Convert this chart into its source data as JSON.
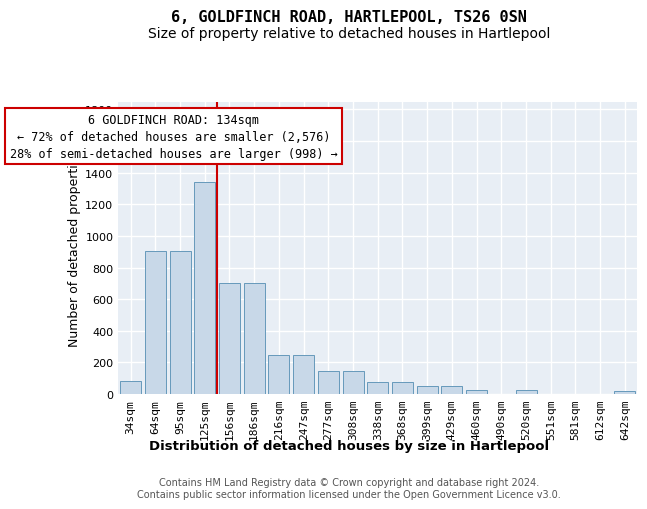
{
  "title": "6, GOLDFINCH ROAD, HARTLEPOOL, TS26 0SN",
  "subtitle": "Size of property relative to detached houses in Hartlepool",
  "xlabel": "Distribution of detached houses by size in Hartlepool",
  "ylabel": "Number of detached properties",
  "categories": [
    "34sqm",
    "64sqm",
    "95sqm",
    "125sqm",
    "156sqm",
    "186sqm",
    "216sqm",
    "247sqm",
    "277sqm",
    "308sqm",
    "338sqm",
    "368sqm",
    "399sqm",
    "429sqm",
    "460sqm",
    "490sqm",
    "520sqm",
    "551sqm",
    "581sqm",
    "612sqm",
    "642sqm"
  ],
  "values": [
    82,
    905,
    905,
    1340,
    705,
    705,
    248,
    248,
    145,
    145,
    78,
    78,
    50,
    50,
    28,
    0,
    28,
    0,
    0,
    0,
    20
  ],
  "bar_color": "#c8d8e8",
  "bar_edge_color": "#6699bb",
  "vline_x": 3.5,
  "vline_color": "#cc0000",
  "annotation_text": "6 GOLDFINCH ROAD: 134sqm\n← 72% of detached houses are smaller (2,576)\n28% of semi-detached houses are larger (998) →",
  "annotation_box_facecolor": "#ffffff",
  "annotation_box_edgecolor": "#cc0000",
  "annotation_fontsize": 8.5,
  "ylim": [
    0,
    1850
  ],
  "yticks": [
    0,
    200,
    400,
    600,
    800,
    1000,
    1200,
    1400,
    1600,
    1800
  ],
  "title_fontsize": 11,
  "subtitle_fontsize": 10,
  "xlabel_fontsize": 9.5,
  "ylabel_fontsize": 9,
  "tick_fontsize": 8,
  "footer_text": "Contains HM Land Registry data © Crown copyright and database right 2024.\nContains public sector information licensed under the Open Government Licence v3.0.",
  "footer_fontsize": 7,
  "plot_bg_color": "#e8eef5",
  "figure_bg_color": "#ffffff",
  "grid_color": "#ffffff",
  "grid_linewidth": 1.0
}
